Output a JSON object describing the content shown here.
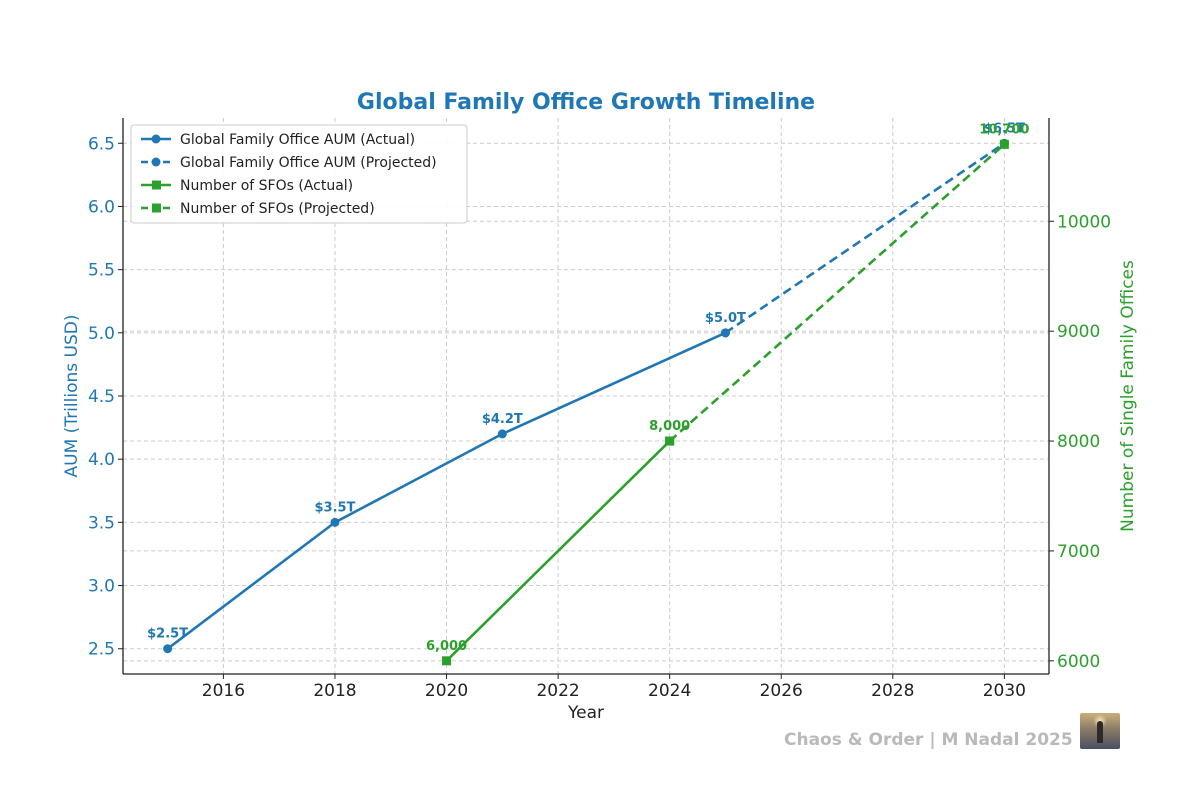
{
  "chart_data": {
    "type": "line",
    "title": "Global Family Office Growth Timeline",
    "xlabel": "Year",
    "ylabel": "AUM (Trillions USD)",
    "y2label": "Number of Single Family Offices",
    "xlim": [
      2014.2,
      2030.8
    ],
    "ylim": [
      2.3,
      6.7
    ],
    "y2lim": [
      5880,
      10940
    ],
    "xticks": [
      2016,
      2018,
      2020,
      2022,
      2024,
      2026,
      2028,
      2030
    ],
    "yticks": [
      2.5,
      3.0,
      3.5,
      4.0,
      4.5,
      5.0,
      5.5,
      6.0,
      6.5
    ],
    "y2ticks": [
      6000,
      7000,
      8000,
      9000,
      10000
    ],
    "grid": true,
    "legend_position": "upper-left",
    "series": [
      {
        "name": "Global Family Office AUM (Actual)",
        "axis": "left",
        "style": "solid",
        "marker": "circle",
        "color": "#1f77b4",
        "points": [
          {
            "x": 2015,
            "y": 2.5,
            "label": "$2.5T"
          },
          {
            "x": 2018,
            "y": 3.5,
            "label": "$3.5T"
          },
          {
            "x": 2021,
            "y": 4.2,
            "label": "$4.2T"
          },
          {
            "x": 2025,
            "y": 5.0,
            "label": "$5.0T"
          }
        ]
      },
      {
        "name": "Global Family Office AUM (Projected)",
        "axis": "left",
        "style": "dashed",
        "marker": "circle",
        "color": "#1f77b4",
        "points": [
          {
            "x": 2025,
            "y": 5.0,
            "label": ""
          },
          {
            "x": 2030,
            "y": 6.5,
            "label": "$6.5T"
          }
        ]
      },
      {
        "name": "Number of SFOs (Actual)",
        "axis": "right",
        "style": "solid",
        "marker": "square",
        "color": "#2ca02c",
        "points": [
          {
            "x": 2020,
            "y": 6000,
            "label": "6,000"
          },
          {
            "x": 2024,
            "y": 8000,
            "label": "8,000"
          }
        ]
      },
      {
        "name": "Number of SFOs (Projected)",
        "axis": "right",
        "style": "dashed",
        "marker": "square",
        "color": "#2ca02c",
        "points": [
          {
            "x": 2024,
            "y": 8000,
            "label": ""
          },
          {
            "x": 2030,
            "y": 10700,
            "label": "10,700"
          }
        ]
      }
    ]
  },
  "colors": {
    "aum": "#1f77b4",
    "sfo": "#2ca02c",
    "title": "#1f77b4",
    "grid": "#cccccc"
  },
  "footer": {
    "credit": "Chaos & Order | M Nadal 2025",
    "logo": "lighthouse-logo-icon"
  }
}
